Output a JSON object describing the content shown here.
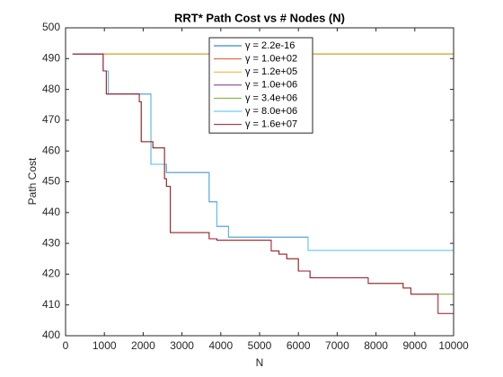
{
  "chart_data": {
    "type": "line",
    "step": true,
    "title": "RRT* Path Cost vs # Nodes (N)",
    "x_label": "N",
    "y_label": "Path Cost",
    "xlim": [
      0,
      10000
    ],
    "xticks": [
      0,
      1000,
      2000,
      3000,
      4000,
      5000,
      6000,
      7000,
      8000,
      9000,
      10000
    ],
    "ylim": [
      400,
      500
    ],
    "yticks": [
      400,
      410,
      420,
      430,
      440,
      450,
      460,
      470,
      480,
      490,
      500
    ],
    "legend_position": "top",
    "x": [
      180,
      970,
      1050,
      1100,
      1900,
      1950,
      2000,
      2200,
      2250,
      2300,
      2550,
      2600,
      2650,
      2700,
      3700,
      3750,
      3900,
      4200,
      5300,
      5500,
      5700,
      6000,
      6250,
      6300,
      7800,
      8700,
      8900,
      9600,
      10000
    ],
    "series": [
      {
        "name": "γ = 2.2e-16",
        "color": "#0072BD",
        "values": [
          491.5,
          491.5,
          491.5,
          491.5,
          491.5,
          491.5,
          491.5,
          491.5,
          491.5,
          491.5,
          491.5,
          491.5,
          491.5,
          491.5,
          491.5,
          491.5,
          491.5,
          491.5,
          491.5,
          491.5,
          491.5,
          491.5,
          491.5,
          491.5,
          491.5,
          491.5,
          491.5,
          491.5,
          491.5
        ]
      },
      {
        "name": "γ = 1.0e+02",
        "color": "#D95319",
        "values": [
          491.5,
          491.5,
          491.5,
          491.5,
          491.5,
          491.5,
          491.5,
          491.5,
          491.5,
          491.5,
          491.5,
          491.5,
          491.5,
          491.5,
          491.5,
          491.5,
          491.5,
          491.5,
          491.5,
          491.5,
          491.5,
          491.5,
          491.5,
          491.5,
          491.5,
          491.5,
          491.5,
          491.5,
          491.5
        ]
      },
      {
        "name": "γ = 1.2e+05",
        "color": "#EDB120",
        "values": [
          491.5,
          491.5,
          491.5,
          491.5,
          491.5,
          491.5,
          491.5,
          491.5,
          491.5,
          491.5,
          491.5,
          491.5,
          491.5,
          491.5,
          491.5,
          491.5,
          491.5,
          491.5,
          491.5,
          491.5,
          491.5,
          491.5,
          491.5,
          491.5,
          491.5,
          491.5,
          491.5,
          491.5,
          491.5
        ]
      },
      {
        "name": "γ = 1.0e+06",
        "color": "#7E2F8E",
        "values": [
          491.5,
          486,
          486,
          478.5,
          478.5,
          478.5,
          478.5,
          455.7,
          455.7,
          455.7,
          455.7,
          453,
          453,
          453,
          443.5,
          443.5,
          435.5,
          432,
          432,
          432,
          432,
          432,
          427.7,
          427.7,
          427.7,
          427.7,
          427.7,
          427.7,
          427.7
        ]
      },
      {
        "name": "γ = 3.4e+06",
        "color": "#77AC30",
        "values": [
          491.5,
          486,
          478.5,
          478.5,
          476,
          463,
          463,
          463,
          461,
          461,
          451,
          448.5,
          448.5,
          433.5,
          431.5,
          431.5,
          431,
          431,
          427.5,
          426.5,
          425,
          421,
          421,
          418.8,
          417,
          415.5,
          413.5,
          413.5,
          413.5
        ]
      },
      {
        "name": "γ = 8.0e+06",
        "color": "#4DBEEE",
        "values": [
          491.5,
          486,
          486,
          478.5,
          478.5,
          478.5,
          478.5,
          455.7,
          455.7,
          455.7,
          455.7,
          453,
          453,
          453,
          443.5,
          443.5,
          435.5,
          432,
          432,
          432,
          432,
          432,
          427.7,
          427.7,
          427.7,
          427.7,
          427.7,
          427.7,
          427.7
        ]
      },
      {
        "name": "γ = 1.6e+07",
        "color": "#A2142F",
        "values": [
          491.5,
          486,
          478.5,
          478.5,
          476,
          463,
          463,
          463,
          461,
          461,
          451,
          448.5,
          448.5,
          433.5,
          431.5,
          431.5,
          431,
          431,
          427.5,
          426.5,
          425,
          421,
          421,
          418.8,
          417,
          415.5,
          413.5,
          407.2,
          407.2
        ]
      }
    ]
  }
}
